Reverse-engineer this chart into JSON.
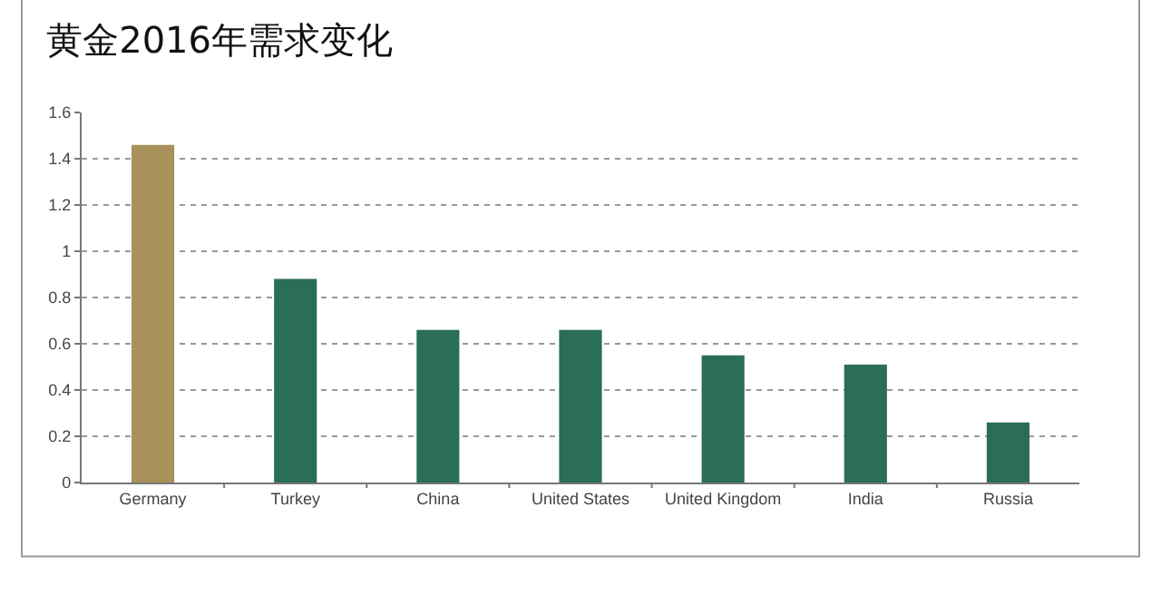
{
  "chart_data": {
    "type": "bar",
    "title": "黄金2016年需求变化",
    "categories": [
      "Germany",
      "Turkey",
      "China",
      "United States",
      "United Kingdom",
      "India",
      "Russia"
    ],
    "values": [
      1.46,
      0.88,
      0.66,
      0.66,
      0.55,
      0.51,
      0.26
    ],
    "colors": [
      "#a8915a",
      "#2a6e55",
      "#2a6e55",
      "#2a6e55",
      "#2a6e55",
      "#2a6e55",
      "#2a6e55"
    ],
    "ylim": [
      0,
      1.6
    ],
    "yticks": [
      0,
      0.2,
      0.4,
      0.6,
      0.8,
      1,
      1.2,
      1.4,
      1.6
    ],
    "grid": "y"
  }
}
